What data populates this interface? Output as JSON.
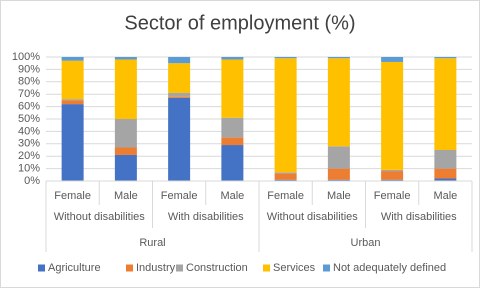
{
  "chart_data": {
    "type": "stacked_bar",
    "title": "Sector of employment (%)",
    "categories": [
      "Female",
      "Male",
      "Female",
      "Male",
      "Female",
      "Male",
      "Female",
      "Male"
    ],
    "category_groups": [
      [
        "Without disabilities",
        "With disabilities",
        "Without disabilities",
        "With disabilities"
      ],
      [
        "Rural",
        "Urban"
      ]
    ],
    "series": [
      {
        "name": "Agriculture",
        "color": "#4472c4",
        "values": [
          62,
          21,
          67,
          29,
          1,
          1,
          1,
          2
        ]
      },
      {
        "name": "Industry",
        "color": "#ed7d31",
        "values": [
          3,
          6,
          1,
          6,
          5,
          9,
          7,
          8
        ]
      },
      {
        "name": "Construction",
        "color": "#a5a5a5",
        "values": [
          1,
          23,
          3,
          16,
          1,
          18,
          1,
          15
        ]
      },
      {
        "name": "Services",
        "color": "#ffc000",
        "values": [
          31,
          48,
          24,
          47,
          92,
          71,
          87,
          74
        ]
      },
      {
        "name": "Not adequately defined",
        "color": "#5b9bd5",
        "values": [
          3,
          2,
          5,
          2,
          1,
          1,
          4,
          1
        ]
      }
    ],
    "ylim": [
      0,
      100
    ],
    "yticks": [
      {
        "value": 0,
        "label": "0%"
      },
      {
        "value": 10,
        "label": "10%"
      },
      {
        "value": 20,
        "label": "20%"
      },
      {
        "value": 30,
        "label": "30%"
      },
      {
        "value": 40,
        "label": "40%"
      },
      {
        "value": 50,
        "label": "50%"
      },
      {
        "value": 60,
        "label": "60%"
      },
      {
        "value": 70,
        "label": "70%"
      },
      {
        "value": 80,
        "label": "80%"
      },
      {
        "value": 90,
        "label": "90%"
      },
      {
        "value": 100,
        "label": "100%"
      }
    ],
    "grid": true,
    "legend": "bottom"
  }
}
